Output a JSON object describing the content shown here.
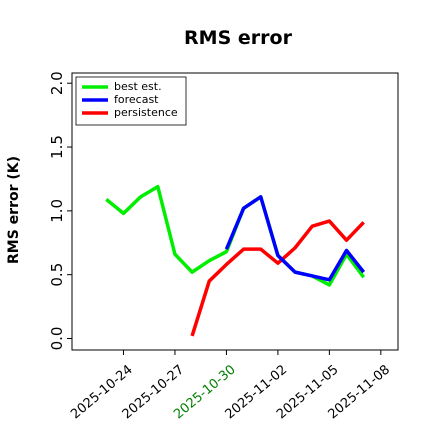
{
  "chart_data": {
    "type": "line",
    "title": "RMS error",
    "y_label": "RMS error (K)",
    "x": [
      "2025-10-23",
      "2025-10-24",
      "2025-10-25",
      "2025-10-26",
      "2025-10-27",
      "2025-10-28",
      "2025-10-29",
      "2025-10-30",
      "2025-10-31",
      "2025-11-01",
      "2025-11-02",
      "2025-11-03",
      "2025-11-04",
      "2025-11-05",
      "2025-11-06",
      "2025-11-07"
    ],
    "series": [
      {
        "name": "best est.",
        "color": "#00ee00",
        "values": [
          1.09,
          0.98,
          1.11,
          1.19,
          0.66,
          0.52,
          0.61,
          0.68,
          1.02,
          1.11,
          0.65,
          0.52,
          0.49,
          0.42,
          0.66,
          0.48
        ]
      },
      {
        "name": "persistence",
        "color": "#ff0000",
        "values": [
          null,
          null,
          null,
          null,
          null,
          0.02,
          0.45,
          0.58,
          0.7,
          0.7,
          0.59,
          0.71,
          0.88,
          0.92,
          0.77,
          0.91
        ]
      },
      {
        "name": "forecast",
        "color": "#0000ff",
        "values": [
          null,
          null,
          null,
          null,
          null,
          null,
          null,
          0.7,
          1.02,
          1.11,
          0.65,
          0.52,
          0.49,
          0.46,
          0.69,
          0.52
        ]
      }
    ],
    "legend_order": [
      "best est.",
      "forecast",
      "persistence"
    ],
    "legend": "upper left",
    "xlim": [
      "2025-10-21",
      "2025-11-09"
    ],
    "xticks": [
      "2025-10-24",
      "2025-10-27",
      "2025-10-30",
      "2025-11-02",
      "2025-11-05",
      "2025-11-08"
    ],
    "xtick_colors": [
      "#000000",
      "#000000",
      "#008000",
      "#000000",
      "#000000",
      "#000000"
    ],
    "ylim": [
      -0.09,
      2.08
    ],
    "yticks": [
      0.0,
      0.5,
      1.0,
      1.5,
      2.0
    ],
    "ytick_labels": [
      "0.0",
      "0.5",
      "1.0",
      "1.5",
      "2.0"
    ]
  }
}
